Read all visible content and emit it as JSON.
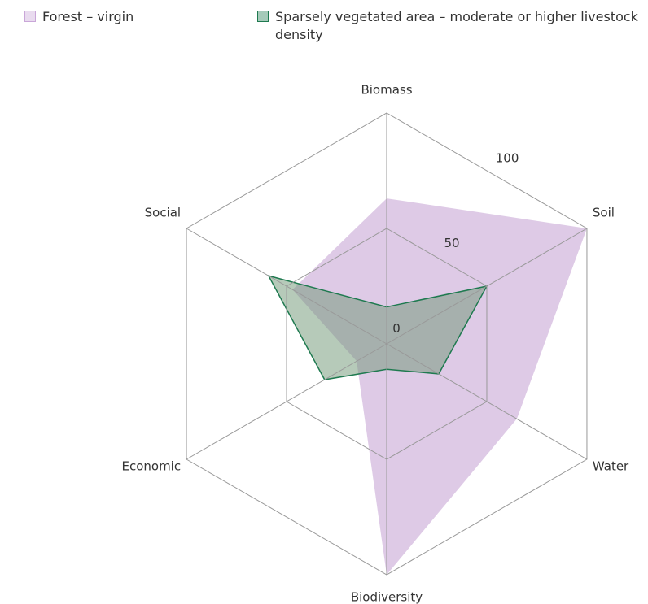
{
  "chart_data": {
    "type": "radar",
    "axes": [
      "Biomass",
      "Soil",
      "Water",
      "Biodiversity",
      "Economic",
      "Social"
    ],
    "rlim": [
      0,
      100
    ],
    "rticks": [
      0,
      50,
      100
    ],
    "series": [
      {
        "name": "Forest – virgin",
        "color": "#c9a6d8",
        "values": [
          63,
          100,
          65,
          100,
          15,
          47
        ]
      },
      {
        "name": "Sparsely vegetated area – moderate or higher livestock density",
        "color": "#1f7a50",
        "values": [
          16,
          50,
          26,
          11,
          31,
          59
        ]
      }
    ]
  }
}
